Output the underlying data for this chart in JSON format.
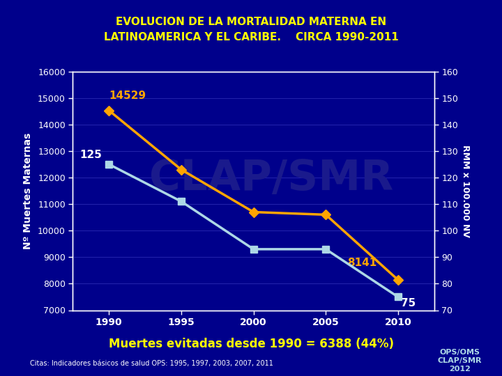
{
  "title_line1": "EVOLUCION DE LA MORTALIDAD MATERNA EN",
  "title_line2": "LATINOAMERICA Y EL CARIBE.    CIRCA 1990-2011",
  "title_color": "#FFFF00",
  "background_color": "#00008B",
  "plot_bg_color": "#00008B",
  "years": [
    1990,
    1995,
    2000,
    2005,
    2010
  ],
  "orange_line": {
    "values": [
      14529,
      12300,
      10700,
      10600,
      8141
    ],
    "color": "#FFA500",
    "linewidth": 2.5,
    "marker": "D",
    "markersize": 7,
    "label_start": "14529",
    "label_end": "8141",
    "label_color": "#FFA500"
  },
  "white_line": {
    "values": [
      125,
      111,
      93,
      93,
      75
    ],
    "color": "#ADD8E6",
    "linewidth": 2.5,
    "marker": "s",
    "markersize": 7,
    "label_start": "125",
    "label_end": "75",
    "label_color": "#FFFFFF"
  },
  "left_ylim": [
    7000,
    16000
  ],
  "left_yticks": [
    7000,
    8000,
    9000,
    10000,
    11000,
    12000,
    13000,
    14000,
    15000,
    16000
  ],
  "left_ylabel": "Nº Muertes Maternas",
  "right_ylim": [
    70,
    160
  ],
  "right_yticks": [
    70,
    80,
    90,
    100,
    110,
    120,
    130,
    140,
    150,
    160
  ],
  "right_ylabel": "RMM x 100.000 NV",
  "xlabel_ticks": [
    1990,
    1995,
    2000,
    2005,
    2010
  ],
  "grid_color": "#2222AA",
  "tick_color": "#FFFFFF",
  "axis_label_color": "#FFFFFF",
  "watermark_text": "CLAP/SMR",
  "watermark_color": "#1a1a8c",
  "footer_text": "Muertes evitadas desde 1990 = 6388 (44%)",
  "footer_color": "#FFFF00",
  "citation_text": "Citas: Indicadores básicos de salud OPS: 1995, 1997, 2003, 2007, 2011",
  "citation_color": "#FFFFFF",
  "logo_text": "OPS/OMS\nCLAP/SMR\n2012",
  "logo_color": "#ADD8E6"
}
